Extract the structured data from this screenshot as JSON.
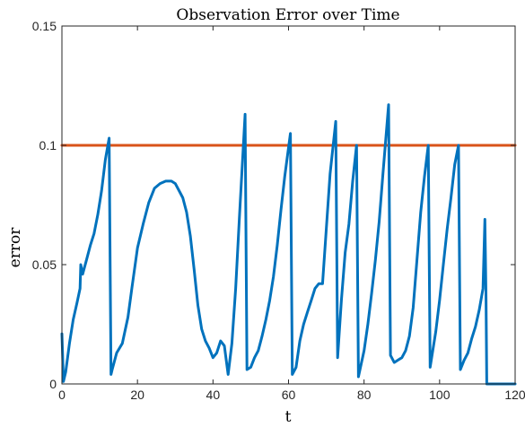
{
  "chart_data": {
    "type": "line",
    "title": "Observation Error over Time",
    "xlabel": "t",
    "ylabel": "error",
    "xlim": [
      0,
      120
    ],
    "ylim": [
      0,
      0.15
    ],
    "xticks": [
      0,
      20,
      40,
      60,
      80,
      100,
      120
    ],
    "xtick_labels": [
      "0",
      "20",
      "40",
      "60",
      "80",
      "100",
      "120"
    ],
    "yticks": [
      0,
      0.05,
      0.1,
      0.15
    ],
    "ytick_labels": [
      "0",
      "0.05",
      "0.1",
      "0.15"
    ],
    "grid": false,
    "legend": "none",
    "colors": {
      "error": "#0072BD",
      "threshold": "#D95319",
      "axes": "#262626"
    },
    "series": [
      {
        "key": "error",
        "x": [
          0,
          0.4,
          1,
          2,
          3,
          4,
          4.8,
          5,
          5.5,
          6.5,
          7.5,
          8.5,
          9.5,
          10.5,
          11.5,
          12.5,
          13,
          13.3,
          14.5,
          16,
          17.5,
          18.5,
          20,
          21.5,
          23,
          24.5,
          26,
          27.5,
          29,
          30,
          31,
          32,
          33,
          34,
          35,
          36,
          37,
          38,
          39,
          40,
          41,
          42,
          43,
          44,
          45,
          46,
          47,
          48.5,
          49,
          50,
          51,
          52,
          53,
          54,
          55,
          56,
          57,
          58,
          59,
          60.5,
          61,
          62,
          63,
          64,
          65,
          66,
          67,
          68,
          69,
          70,
          71,
          72.5,
          73,
          74,
          75,
          76,
          77,
          78,
          78.5,
          80,
          81,
          82,
          83,
          84,
          85,
          86.5,
          87,
          88,
          89,
          90,
          91,
          92,
          93,
          94,
          95,
          96,
          97,
          97.5,
          99,
          100,
          101,
          102,
          103,
          104,
          105,
          105.5,
          106.5,
          107.5,
          108.5,
          109.5,
          110.5,
          111.5,
          112,
          112.3,
          112.5,
          120
        ],
        "y": [
          0.021,
          0.001,
          0.005,
          0.017,
          0.027,
          0.034,
          0.04,
          0.05,
          0.046,
          0.052,
          0.058,
          0.063,
          0.071,
          0.081,
          0.094,
          0.103,
          0.004,
          0.006,
          0.013,
          0.017,
          0.028,
          0.04,
          0.057,
          0.067,
          0.076,
          0.082,
          0.084,
          0.085,
          0.085,
          0.084,
          0.081,
          0.078,
          0.072,
          0.062,
          0.048,
          0.033,
          0.023,
          0.018,
          0.015,
          0.011,
          0.013,
          0.018,
          0.016,
          0.004,
          0.017,
          0.04,
          0.07,
          0.113,
          0.006,
          0.007,
          0.011,
          0.014,
          0.02,
          0.027,
          0.035,
          0.045,
          0.058,
          0.073,
          0.087,
          0.105,
          0.004,
          0.007,
          0.018,
          0.025,
          0.03,
          0.035,
          0.04,
          0.042,
          0.042,
          0.065,
          0.088,
          0.11,
          0.011,
          0.035,
          0.055,
          0.067,
          0.085,
          0.1,
          0.003,
          0.014,
          0.025,
          0.038,
          0.052,
          0.068,
          0.088,
          0.117,
          0.012,
          0.009,
          0.01,
          0.011,
          0.014,
          0.02,
          0.032,
          0.052,
          0.072,
          0.087,
          0.1,
          0.007,
          0.022,
          0.035,
          0.05,
          0.065,
          0.078,
          0.092,
          0.1,
          0.006,
          0.01,
          0.013,
          0.019,
          0.024,
          0.031,
          0.04,
          0.069,
          0.035,
          0,
          0
        ]
      },
      {
        "key": "threshold",
        "x": [
          0,
          120
        ],
        "y": [
          0.1,
          0.1
        ]
      }
    ]
  }
}
